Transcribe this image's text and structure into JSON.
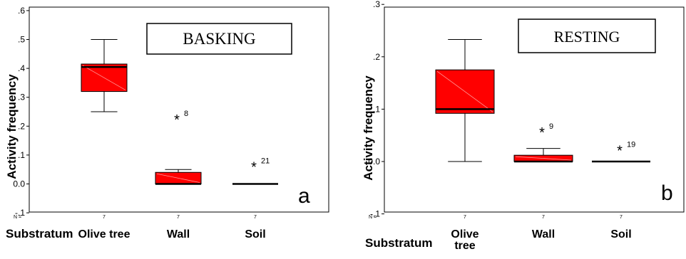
{
  "chart_data": [
    {
      "type": "boxplot",
      "panel_label": "a",
      "title": "BASKING",
      "ylabel": "Activity frequency",
      "xlabel": "Substratum",
      "ylim": [
        -0.1,
        0.6
      ],
      "yticks": [
        -0.1,
        0.0,
        0.1,
        0.2,
        0.3,
        0.4,
        0.5,
        0.6
      ],
      "ytick_labels": [
        "-.1",
        "0.0",
        ".1",
        ".2",
        ".3",
        ".4",
        ".5",
        ".6"
      ],
      "n_label": "N =",
      "categories": [
        "Olive tree",
        "Wall",
        "Soil"
      ],
      "n": [
        "7",
        "7",
        "7"
      ],
      "box_color": "#ff0000",
      "boxes": [
        {
          "min": 0.25,
          "q1": 0.32,
          "median": 0.405,
          "q3": 0.415,
          "max": 0.5,
          "outliers": []
        },
        {
          "min": 0.0,
          "q1": 0.0,
          "median": 0.0,
          "q3": 0.04,
          "max": 0.05,
          "outliers": [
            {
              "value": 0.23,
              "label": "8"
            }
          ]
        },
        {
          "min": 0.0,
          "q1": 0.0,
          "median": 0.0,
          "q3": 0.0,
          "max": 0.0,
          "outliers": [
            {
              "value": 0.067,
              "label": "21"
            }
          ]
        }
      ]
    },
    {
      "type": "boxplot",
      "panel_label": "b",
      "title": "RESTING",
      "ylabel": "Activity frequency",
      "xlabel": "Substratum",
      "ylim": [
        -0.1,
        0.3
      ],
      "yticks": [
        -0.1,
        0.0,
        0.1,
        0.2,
        0.3
      ],
      "ytick_labels": [
        "-.1",
        "0.0",
        ".1",
        ".2",
        ".3"
      ],
      "n_label": "N =",
      "categories": [
        "Olive tree",
        "Wall",
        "Soil"
      ],
      "category_lines": [
        [
          "Olive",
          "tree"
        ],
        [
          "Wall"
        ],
        [
          "Soil"
        ]
      ],
      "n": [
        "7",
        "7",
        "7"
      ],
      "box_color": "#ff0000",
      "boxes": [
        {
          "min": 0.0,
          "q1": 0.092,
          "median": 0.1,
          "q3": 0.175,
          "max": 0.233,
          "outliers": []
        },
        {
          "min": 0.0,
          "q1": 0.0,
          "median": 0.0,
          "q3": 0.012,
          "max": 0.025,
          "outliers": [
            {
              "value": 0.06,
              "label": "9"
            }
          ]
        },
        {
          "min": 0.0,
          "q1": 0.0,
          "median": 0.0,
          "q3": 0.0,
          "max": 0.0,
          "outliers": [
            {
              "value": 0.025,
              "label": "19"
            }
          ]
        }
      ]
    }
  ]
}
